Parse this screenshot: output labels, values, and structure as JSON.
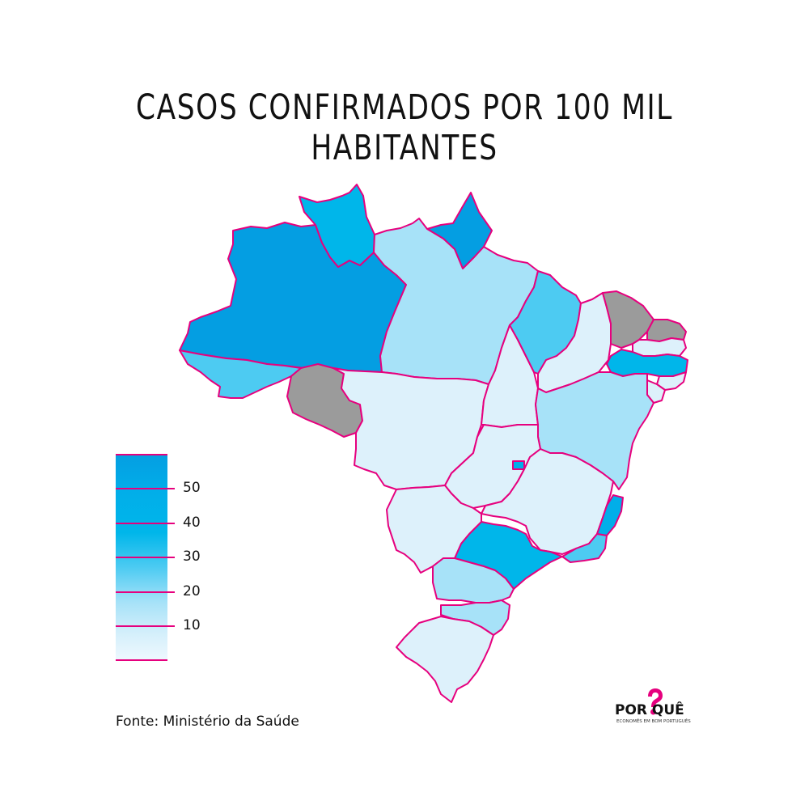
{
  "title": "CASOS CONFIRMADOS POR 100 MIL HABITANTES",
  "source": "Fonte: Ministério da Saúde",
  "logo": {
    "word": "POR QUÊ",
    "tagline": "ECONOMÊS EM BOM PORTUGUÊS",
    "accent": "#e6007e"
  },
  "colors": {
    "border": "#e6007e",
    "no_data": "#9b9b9b",
    "bin_0_10": "#ddf1fb",
    "bin_10_20": "#a7e2f8",
    "bin_20_30": "#4dcbf2",
    "bin_30_40": "#00b6ea",
    "bin_40_50": "#01aee9",
    "bin_50_plus": "#049ee2"
  },
  "legend": {
    "labels": [
      "50",
      "40",
      "30",
      "20",
      "10"
    ]
  },
  "regions": [
    {
      "id": "AM",
      "bin": "bin_50_plus"
    },
    {
      "id": "RR",
      "bin": "bin_30_40"
    },
    {
      "id": "AP",
      "bin": "bin_50_plus"
    },
    {
      "id": "PA",
      "bin": "bin_10_20"
    },
    {
      "id": "AC",
      "bin": "bin_20_30"
    },
    {
      "id": "RO",
      "bin": "no_data"
    },
    {
      "id": "MT",
      "bin": "bin_0_10"
    },
    {
      "id": "TO",
      "bin": "bin_0_10"
    },
    {
      "id": "MA",
      "bin": "bin_20_30"
    },
    {
      "id": "PI",
      "bin": "bin_0_10"
    },
    {
      "id": "CE",
      "bin": "no_data"
    },
    {
      "id": "RN",
      "bin": "no_data"
    },
    {
      "id": "PB",
      "bin": "bin_0_10"
    },
    {
      "id": "PE",
      "bin": "bin_30_40"
    },
    {
      "id": "AL",
      "bin": "bin_0_10"
    },
    {
      "id": "SE",
      "bin": "bin_0_10"
    },
    {
      "id": "BA",
      "bin": "bin_10_20"
    },
    {
      "id": "GO",
      "bin": "bin_0_10"
    },
    {
      "id": "DF",
      "bin": "bin_40_50"
    },
    {
      "id": "MG",
      "bin": "bin_0_10"
    },
    {
      "id": "ES",
      "bin": "bin_40_50"
    },
    {
      "id": "RJ",
      "bin": "bin_20_30"
    },
    {
      "id": "SP",
      "bin": "bin_30_40"
    },
    {
      "id": "MS",
      "bin": "bin_0_10"
    },
    {
      "id": "PR",
      "bin": "bin_10_20"
    },
    {
      "id": "SC",
      "bin": "bin_10_20"
    },
    {
      "id": "RS",
      "bin": "bin_0_10"
    }
  ]
}
